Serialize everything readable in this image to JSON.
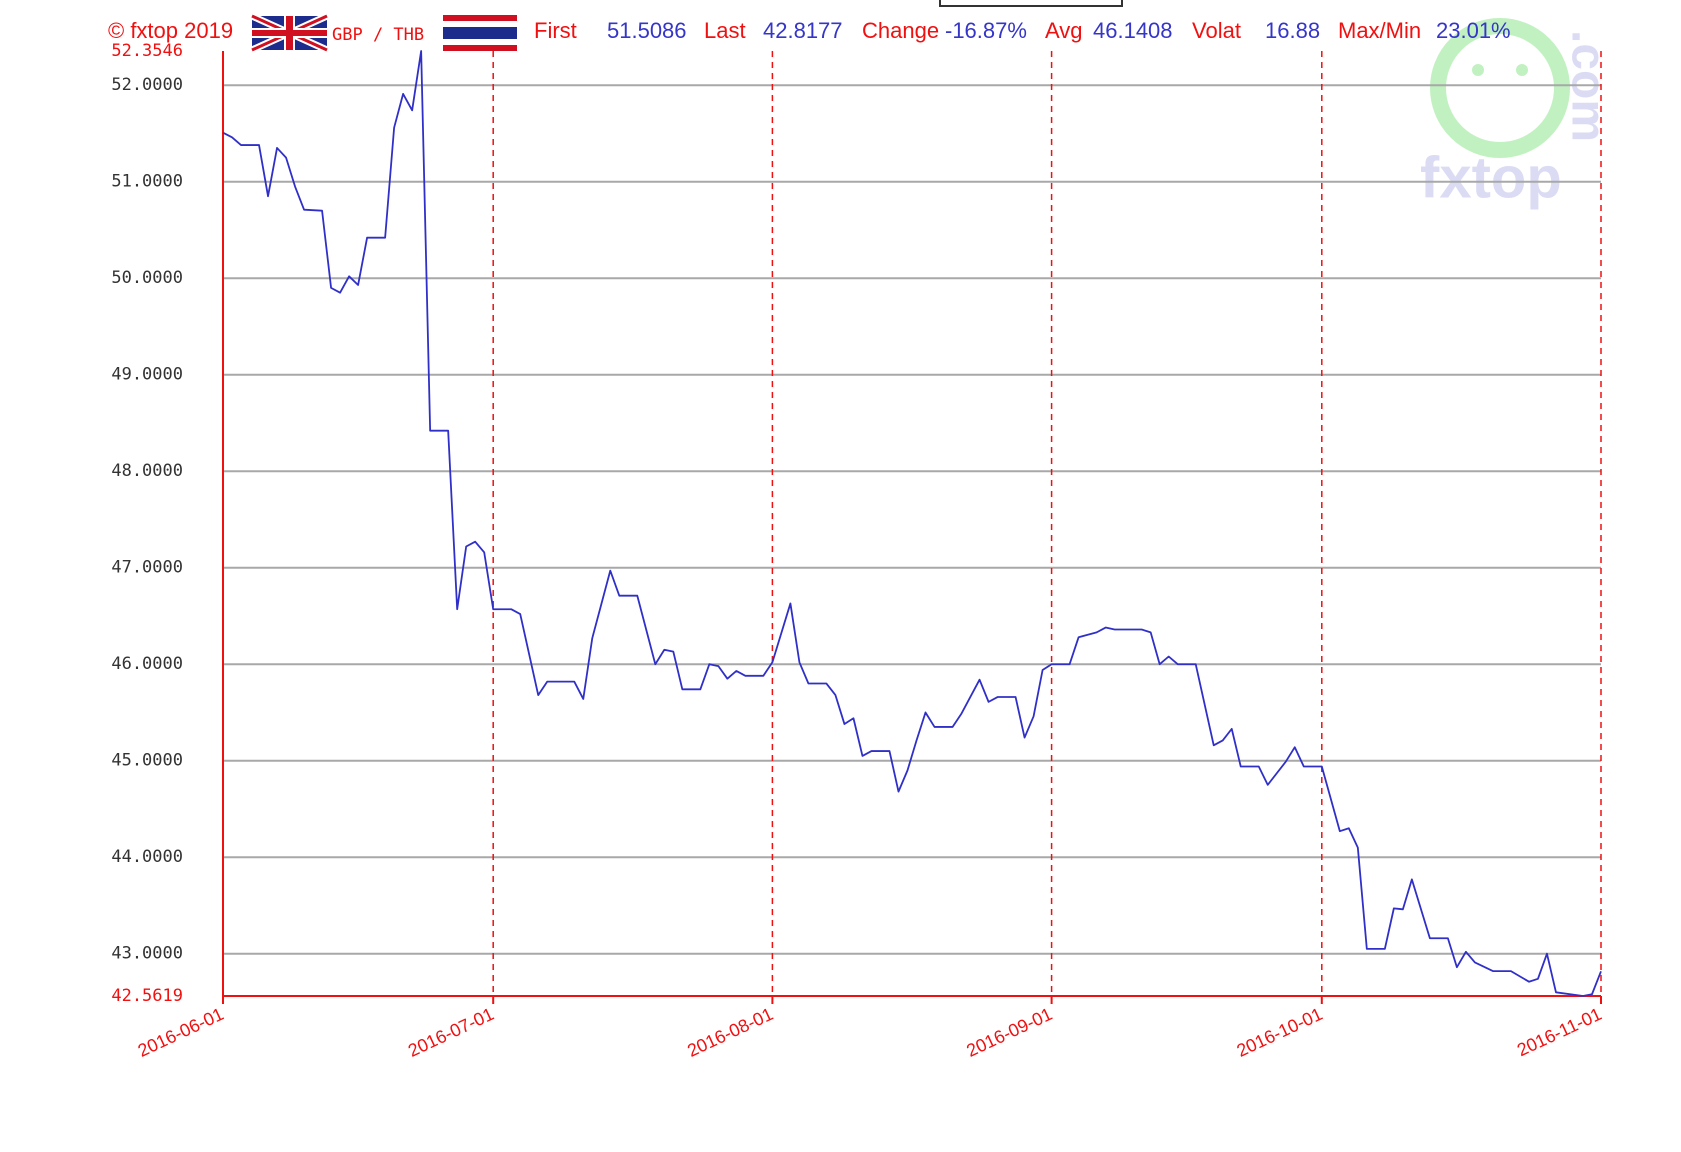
{
  "chart_data": {
    "type": "line",
    "header": {
      "copyright": "© fxtop 2019",
      "pair": "GBP / THB",
      "stats": [
        {
          "label": "First",
          "value": "51.5086"
        },
        {
          "label": "Last",
          "value": "42.8177"
        },
        {
          "label": "Change",
          "value": "-16.87%"
        },
        {
          "label": "Avg",
          "value": "46.1408"
        },
        {
          "label": "Volat",
          "value": "16.88"
        },
        {
          "label": "Max/Min",
          "value": "23.01%"
        }
      ]
    },
    "watermark": {
      "text": "fxtop",
      "suffix": ".com"
    },
    "color": "#3030c8",
    "grid": true,
    "xlim": [
      "2016-06-01",
      "2016-11-01"
    ],
    "xticks": [
      "2016-06-01",
      "2016-07-01",
      "2016-08-01",
      "2016-09-01",
      "2016-10-01",
      "2016-11-01"
    ],
    "ylim": [
      42.5619,
      52.3546
    ],
    "yticks": [
      {
        "value": 43,
        "label": "43.0000"
      },
      {
        "value": 44,
        "label": "44.0000"
      },
      {
        "value": 45,
        "label": "45.0000"
      },
      {
        "value": 46,
        "label": "46.0000"
      },
      {
        "value": 47,
        "label": "47.0000"
      },
      {
        "value": 48,
        "label": "48.0000"
      },
      {
        "value": 49,
        "label": "49.0000"
      },
      {
        "value": 50,
        "label": "50.0000"
      },
      {
        "value": 51,
        "label": "51.0000"
      },
      {
        "value": 52,
        "label": "52.0000"
      }
    ],
    "x": [
      "2016-06-01",
      "2016-06-02",
      "2016-06-03",
      "2016-06-05",
      "2016-06-06",
      "2016-06-07",
      "2016-06-08",
      "2016-06-09",
      "2016-06-10",
      "2016-06-12",
      "2016-06-13",
      "2016-06-14",
      "2016-06-15",
      "2016-06-16",
      "2016-06-17",
      "2016-06-19",
      "2016-06-20",
      "2016-06-21",
      "2016-06-22",
      "2016-06-23",
      "2016-06-24",
      "2016-06-26",
      "2016-06-27",
      "2016-06-28",
      "2016-06-29",
      "2016-06-30",
      "2016-07-01",
      "2016-07-03",
      "2016-07-04",
      "2016-07-06",
      "2016-07-07",
      "2016-07-10",
      "2016-07-11",
      "2016-07-12",
      "2016-07-14",
      "2016-07-15",
      "2016-07-17",
      "2016-07-19",
      "2016-07-20",
      "2016-07-21",
      "2016-07-22",
      "2016-07-24",
      "2016-07-25",
      "2016-07-26",
      "2016-07-27",
      "2016-07-28",
      "2016-07-29",
      "2016-07-31",
      "2016-08-01",
      "2016-08-03",
      "2016-08-04",
      "2016-08-05",
      "2016-08-07",
      "2016-08-08",
      "2016-08-09",
      "2016-08-10",
      "2016-08-11",
      "2016-08-12",
      "2016-08-14",
      "2016-08-15",
      "2016-08-16",
      "2016-08-17",
      "2016-08-18",
      "2016-08-19",
      "2016-08-21",
      "2016-08-22",
      "2016-08-24",
      "2016-08-25",
      "2016-08-26",
      "2016-08-28",
      "2016-08-29",
      "2016-08-30",
      "2016-08-31",
      "2016-09-01",
      "2016-09-03",
      "2016-09-04",
      "2016-09-06",
      "2016-09-07",
      "2016-09-08",
      "2016-09-11",
      "2016-09-12",
      "2016-09-13",
      "2016-09-14",
      "2016-09-15",
      "2016-09-17",
      "2016-09-19",
      "2016-09-20",
      "2016-09-21",
      "2016-09-22",
      "2016-09-24",
      "2016-09-25",
      "2016-09-27",
      "2016-09-28",
      "2016-09-29",
      "2016-10-01",
      "2016-10-03",
      "2016-10-04",
      "2016-10-05",
      "2016-10-06",
      "2016-10-08",
      "2016-10-09",
      "2016-10-10",
      "2016-10-11",
      "2016-10-13",
      "2016-10-15",
      "2016-10-16",
      "2016-10-17",
      "2016-10-18",
      "2016-10-20",
      "2016-10-22",
      "2016-10-24",
      "2016-10-25",
      "2016-10-26",
      "2016-10-27",
      "2016-10-30",
      "2016-10-31",
      "2016-11-01"
    ],
    "values": [
      51.5086,
      51.46,
      51.38,
      51.38,
      50.85,
      51.35,
      51.25,
      50.95,
      50.71,
      50.7,
      49.9,
      49.85,
      50.02,
      49.93,
      50.42,
      50.42,
      51.56,
      51.91,
      51.74,
      52.3546,
      48.42,
      48.42,
      46.57,
      47.22,
      47.27,
      47.16,
      46.57,
      46.57,
      46.52,
      45.68,
      45.82,
      45.82,
      45.64,
      46.27,
      46.97,
      46.71,
      46.71,
      46.0,
      46.15,
      46.13,
      45.74,
      45.74,
      46.0,
      45.98,
      45.85,
      45.93,
      45.88,
      45.88,
      46.02,
      46.63,
      46.02,
      45.8,
      45.8,
      45.68,
      45.38,
      45.44,
      45.05,
      45.1,
      45.1,
      44.68,
      44.9,
      45.21,
      45.5,
      45.35,
      45.35,
      45.49,
      45.84,
      45.61,
      45.66,
      45.66,
      45.24,
      45.46,
      45.94,
      46.0,
      46.0,
      46.28,
      46.33,
      46.38,
      46.36,
      46.36,
      46.33,
      46.0,
      46.08,
      46.0,
      46.0,
      45.16,
      45.21,
      45.33,
      44.94,
      44.94,
      44.75,
      44.99,
      45.14,
      44.94,
      44.94,
      44.27,
      44.3,
      44.1,
      43.05,
      43.05,
      43.47,
      43.46,
      43.77,
      43.16,
      43.16,
      42.86,
      43.02,
      42.91,
      42.82,
      42.82,
      42.71,
      42.74,
      43.0,
      42.6,
      42.5619,
      42.58,
      42.8177
    ]
  }
}
